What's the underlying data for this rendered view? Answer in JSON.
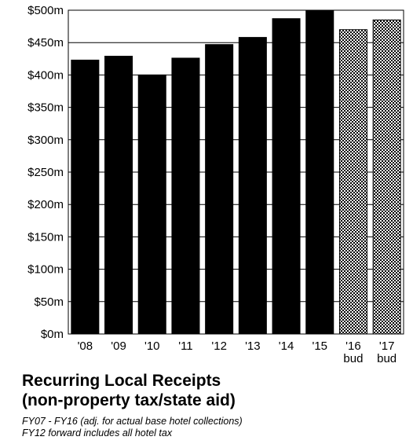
{
  "chart_data": {
    "type": "bar",
    "categories": [
      "'08",
      "'09",
      "'10",
      "'11",
      "'12",
      "'13",
      "'14",
      "'15",
      "'16\nbud",
      "'17\nbud"
    ],
    "values": [
      423,
      429,
      400,
      426,
      447,
      458,
      487,
      500,
      470,
      485
    ],
    "budget_flags": [
      false,
      false,
      false,
      false,
      false,
      false,
      false,
      false,
      true,
      true
    ],
    "ylim": [
      0,
      500
    ],
    "yticks": [
      0,
      50,
      100,
      150,
      200,
      250,
      300,
      350,
      400,
      450,
      500
    ],
    "ytick_labels": [
      "$0m",
      "$50m",
      "$100m",
      "$150m",
      "$200m",
      "$250m",
      "$300m",
      "$350m",
      "$400m",
      "$450m",
      "$500m"
    ],
    "grid": true,
    "legend": "none",
    "colors": {
      "actual": "#000000",
      "budget_pattern": "dotted",
      "grid": "#000000"
    }
  },
  "title_lines": [
    "Recurring Local Receipts",
    "(non-property tax/state aid)"
  ],
  "notes": [
    "FY07 - FY16 (adj. for actual base hotel collections)",
    "FY12 forward includes all hotel tax"
  ]
}
